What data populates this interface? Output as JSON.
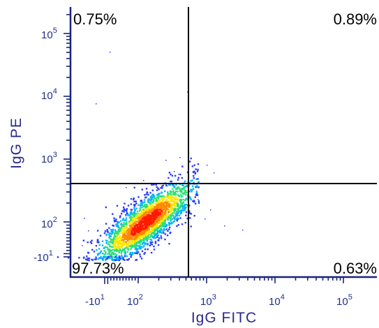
{
  "chart_data": {
    "type": "scatter",
    "subtype": "flow-cytometry density dot plot with quadrant gates",
    "xlabel": "IgG FITC",
    "ylabel": "IgG PE",
    "x_scale": "biexponential (log with linear region near zero)",
    "y_scale": "biexponential (log with linear region near zero)",
    "x_ticks": [
      {
        "value": -10,
        "base": "-10",
        "exp": "1"
      },
      {
        "value": 100,
        "base": "10",
        "exp": "2"
      },
      {
        "value": 1000,
        "base": "10",
        "exp": "3"
      },
      {
        "value": 10000,
        "base": "10",
        "exp": "4"
      },
      {
        "value": 100000,
        "base": "10",
        "exp": "5"
      }
    ],
    "y_ticks": [
      {
        "value": -10,
        "base": "-10",
        "exp": "1"
      },
      {
        "value": 100,
        "base": "10",
        "exp": "2"
      },
      {
        "value": 1000,
        "base": "10",
        "exp": "3"
      },
      {
        "value": 10000,
        "base": "10",
        "exp": "4"
      },
      {
        "value": 100000,
        "base": "10",
        "exp": "5"
      }
    ],
    "gate": {
      "x": 520,
      "y": 380
    },
    "quadrants": {
      "upper_left": "0.75%",
      "upper_right": "0.89%",
      "lower_left": "97.73%",
      "lower_right": "0.63%"
    },
    "population": {
      "description": "main dense population in lower-left quadrant, diagonal elongated cluster",
      "x_range": [
        -10,
        700
      ],
      "y_range": [
        -10,
        600
      ]
    },
    "colormap": [
      "#2a3cff",
      "#00b4ff",
      "#29e07a",
      "#ffe600",
      "#ff8a00",
      "#ff1a00"
    ],
    "grid": false,
    "legend": "none"
  }
}
